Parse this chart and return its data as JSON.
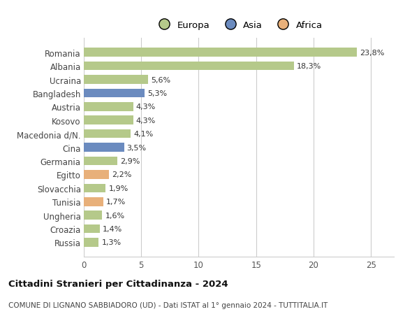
{
  "countries": [
    "Romania",
    "Albania",
    "Ucraina",
    "Bangladesh",
    "Austria",
    "Kosovo",
    "Macedonia d/N.",
    "Cina",
    "Germania",
    "Egitto",
    "Slovacchia",
    "Tunisia",
    "Ungheria",
    "Croazia",
    "Russia"
  ],
  "values": [
    23.8,
    18.3,
    5.6,
    5.3,
    4.3,
    4.3,
    4.1,
    3.5,
    2.9,
    2.2,
    1.9,
    1.7,
    1.6,
    1.4,
    1.3
  ],
  "continents": [
    "Europa",
    "Europa",
    "Europa",
    "Asia",
    "Europa",
    "Europa",
    "Europa",
    "Asia",
    "Europa",
    "Africa",
    "Europa",
    "Africa",
    "Europa",
    "Europa",
    "Europa"
  ],
  "labels": [
    "23,8%",
    "18,3%",
    "5,6%",
    "5,3%",
    "4,3%",
    "4,3%",
    "4,1%",
    "3,5%",
    "2,9%",
    "2,2%",
    "1,9%",
    "1,7%",
    "1,6%",
    "1,4%",
    "1,3%"
  ],
  "colors": {
    "Europa": "#b5c98a",
    "Asia": "#6b8bbf",
    "Africa": "#e8b07a"
  },
  "legend_labels": [
    "Europa",
    "Asia",
    "Africa"
  ],
  "legend_colors": [
    "#b5c98a",
    "#6b8bbf",
    "#e8b07a"
  ],
  "title": "Cittadini Stranieri per Cittadinanza - 2024",
  "subtitle": "COMUNE DI LIGNANO SABBIADORO (UD) - Dati ISTAT al 1° gennaio 2024 - TUTTITALIA.IT",
  "xlim": [
    0,
    27
  ],
  "xticks": [
    0,
    5,
    10,
    15,
    20,
    25
  ],
  "background_color": "#ffffff",
  "grid_color": "#cccccc",
  "bar_height": 0.65,
  "figsize": [
    6.0,
    4.6
  ],
  "dpi": 100
}
